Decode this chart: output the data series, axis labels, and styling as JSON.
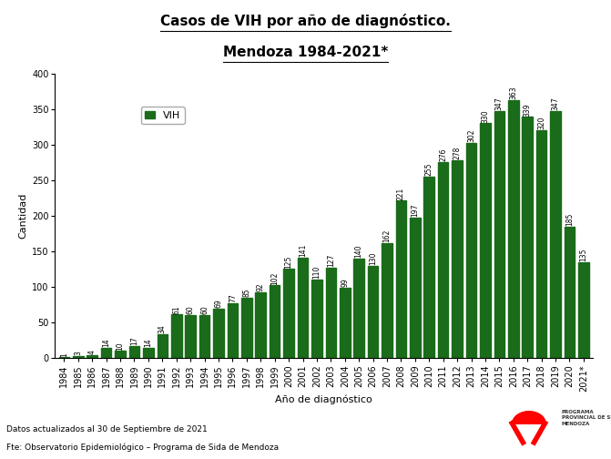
{
  "years": [
    "1984",
    "1985",
    "1986",
    "1987",
    "1988",
    "1989",
    "1990",
    "1991",
    "1992",
    "1993",
    "1994",
    "1995",
    "1996",
    "1997",
    "1998",
    "1999",
    "2000",
    "2001",
    "2002",
    "2003",
    "2004",
    "2005",
    "2006",
    "2007",
    "2008",
    "2009",
    "2010",
    "2011",
    "2012",
    "2013",
    "2014",
    "2015",
    "2016",
    "2017",
    "2018",
    "2019",
    "2020",
    "2021*"
  ],
  "values": [
    1,
    3,
    4,
    14,
    10,
    17,
    14,
    34,
    61,
    60,
    60,
    69,
    77,
    85,
    92,
    102,
    125,
    141,
    110,
    127,
    99,
    140,
    130,
    162,
    221,
    197,
    255,
    276,
    278,
    302,
    330,
    347,
    363,
    339,
    320,
    347,
    185,
    135
  ],
  "bar_color": "#1a6b1a",
  "title_line1": "Casos de VIH por año de diagnóstico.",
  "title_line2": "Mendoza 1984-2021*",
  "xlabel": "Año de diagnóstico",
  "ylabel": "Cantidad",
  "ylim": [
    0,
    400
  ],
  "yticks": [
    0,
    50,
    100,
    150,
    200,
    250,
    300,
    350,
    400
  ],
  "legend_label": "VIH",
  "footnote1": "Datos actualizados al 30 de Septiembre de 2021",
  "footnote2": "Fte: Observatorio Epidemiológico – Programa de Sida de Mendoza",
  "bg_color": "#ffffff",
  "title_fontsize": 11,
  "axis_label_fontsize": 8,
  "tick_fontsize": 7,
  "bar_label_fontsize": 5.5,
  "legend_fontsize": 8
}
